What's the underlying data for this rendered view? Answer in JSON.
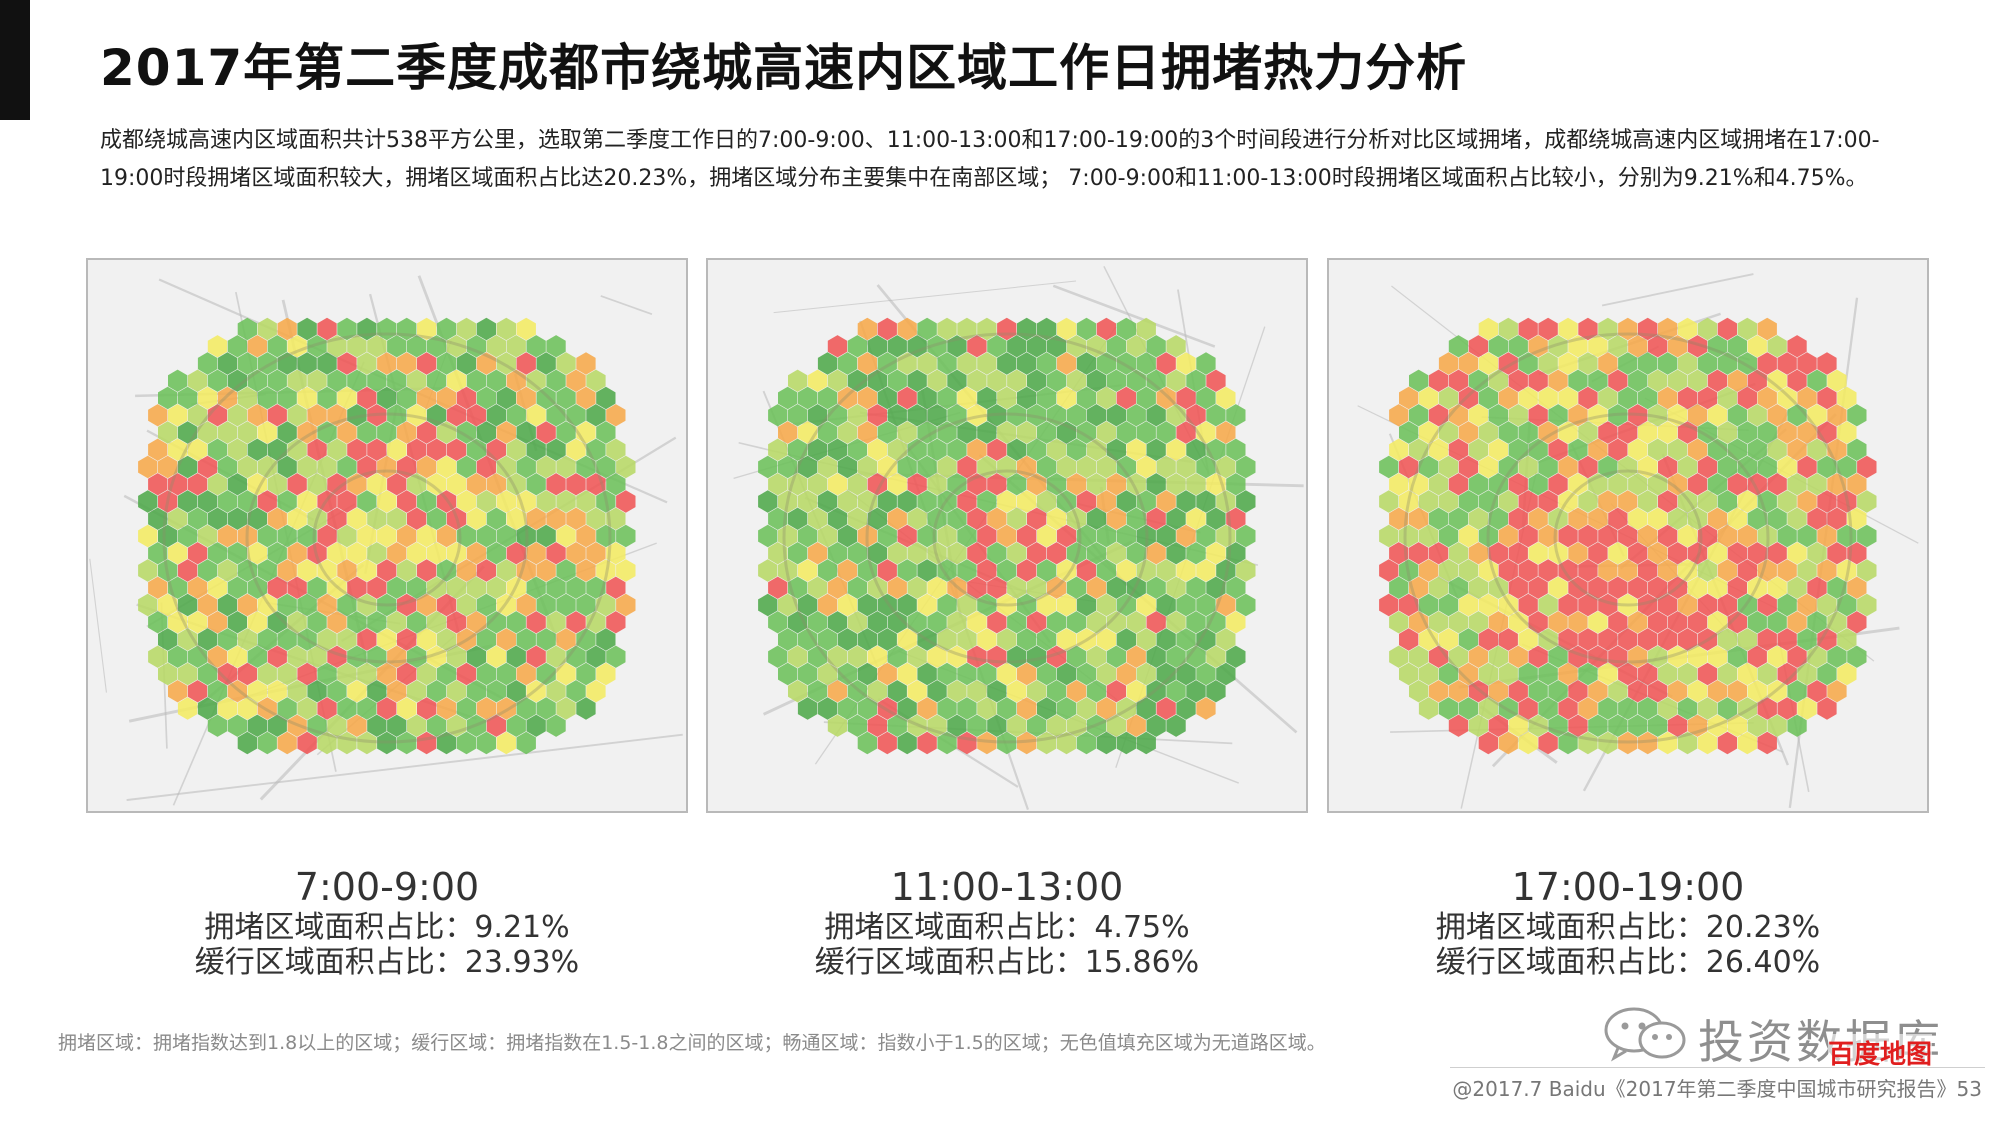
{
  "title": "2017年第二季度成都市绕城高速内区域工作日拥堵热力分析",
  "description": "成都绕城高速内区域面积共计538平方公里，选取第二季度工作日的7:00-9:00、11:00-13:00和17:00-19:00的3个时间段进行分析对比区域拥堵，成都绕城高速内区域拥堵在17:00-19:00时段拥堵区域面积较大，拥堵区域面积占比达20.23%，拥堵区域分布主要集中在南部区域； 7:00-9:00和11:00-13:00时段拥堵区域面积占比较小，分别为9.21%和4.75%。",
  "colors": {
    "congested": "#ef5555",
    "slow": "#f6a94a",
    "yellow": "#f2ea62",
    "light_green": "#b7d865",
    "green": "#6cc05a",
    "dark_green": "#4ea84a",
    "map_bg": "#f1f1f1",
    "road": "#b8b8b8"
  },
  "maps": [
    {
      "time": "7:00-9:00",
      "congested_label": "拥堵区域面积占比：9.21%",
      "slow_label": "缓行区域面积占比：23.93%",
      "congested_share": 0.0921,
      "slow_share": 0.2393
    },
    {
      "time": "11:00-13:00",
      "congested_label": "拥堵区域面积占比：4.75%",
      "slow_label": "缓行区域面积占比：15.86%",
      "congested_share": 0.0475,
      "slow_share": 0.1586
    },
    {
      "time": "17:00-19:00",
      "congested_label": "拥堵区域面积占比：20.23%",
      "slow_label": "缓行区域面积占比：26.40%",
      "congested_share": 0.2023,
      "slow_share": 0.264
    }
  ],
  "note": "拥堵区域：拥堵指数达到1.8以上的区域；缓行区域：拥堵指数在1.5-1.8之间的区域；畅通区域：指数小于1.5的区域；无色值填充区域为无道路区域。",
  "watermark": {
    "text": "投资数据库",
    "brand": "百度地图"
  },
  "credit": "@2017.7 Baidu《2017年第二季度中国城市研究报告》53"
}
